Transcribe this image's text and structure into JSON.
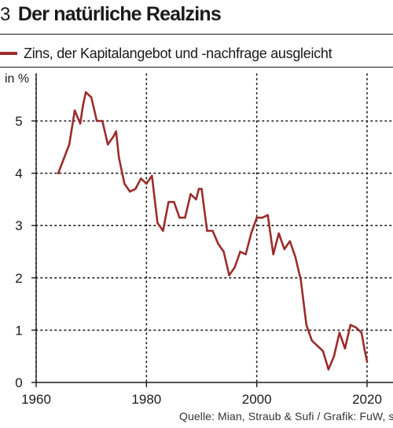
{
  "figure": {
    "number": "3",
    "title": "Der natürliche Realzins",
    "unit": "in %",
    "source": "Quelle: Mian, Straub & Sufi / Grafik: FuW, sp"
  },
  "colors": {
    "line": "#9b2c2c",
    "text": "#1a1a1a",
    "grid": "#1a1a1a"
  },
  "chart_data": {
    "type": "line",
    "title": "Der natürliche Realzins",
    "xlabel": "",
    "ylabel": "in %",
    "xlim": [
      1960,
      2023
    ],
    "ylim": [
      0,
      5.6
    ],
    "x_ticks": [
      1960,
      1980,
      2000,
      2020
    ],
    "y_ticks": [
      0,
      1,
      2,
      3,
      4,
      5
    ],
    "grid": true,
    "legend": "top-left",
    "series": [
      {
        "name": "Zins, der Kapitalangebot und -nachfrage ausgleicht",
        "color": "#9b2c2c",
        "x": [
          1964,
          1966,
          1967,
          1968,
          1968.5,
          1969,
          1970,
          1971,
          1972,
          1973,
          1974,
          1974.5,
          1975,
          1976,
          1977,
          1978,
          1979,
          1980,
          1981,
          1982,
          1983,
          1984,
          1985,
          1986,
          1987,
          1988,
          1989,
          1989.5,
          1990,
          1991,
          1992,
          1993,
          1994,
          1995,
          1996,
          1997,
          1998,
          1999,
          2000,
          2001,
          2002,
          2003,
          2004,
          2005,
          2006,
          2007,
          2008,
          2009,
          2010,
          2011,
          2012,
          2013,
          2014,
          2015,
          2016,
          2017,
          2018,
          2019,
          2019.5,
          2020
        ],
        "values": [
          4.0,
          4.55,
          5.2,
          4.95,
          5.3,
          5.55,
          5.45,
          5.0,
          5.0,
          4.55,
          4.7,
          4.8,
          4.3,
          3.8,
          3.65,
          3.7,
          3.9,
          3.8,
          3.95,
          3.05,
          2.9,
          3.45,
          3.45,
          3.15,
          3.15,
          3.6,
          3.5,
          3.7,
          3.7,
          2.9,
          2.9,
          2.65,
          2.5,
          2.05,
          2.2,
          2.5,
          2.45,
          2.85,
          3.15,
          3.15,
          3.2,
          2.45,
          2.85,
          2.55,
          2.7,
          2.4,
          1.95,
          1.1,
          0.8,
          0.7,
          0.6,
          0.25,
          0.5,
          0.95,
          0.65,
          1.1,
          1.05,
          0.95,
          0.65,
          0.4
        ]
      }
    ]
  }
}
